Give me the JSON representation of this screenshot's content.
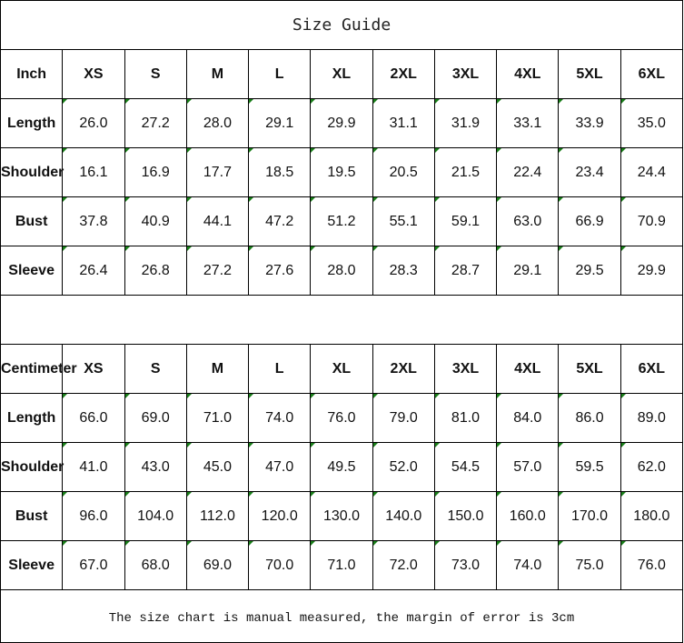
{
  "title": "Size Guide",
  "sizes": [
    "XS",
    "S",
    "M",
    "L",
    "XL",
    "2XL",
    "3XL",
    "4XL",
    "5XL",
    "6XL"
  ],
  "accent_color": "#1a7f1a",
  "tables": [
    {
      "unit": "Inch",
      "rows": [
        {
          "label": "Length",
          "values": [
            "26.0",
            "27.2",
            "28.0",
            "29.1",
            "29.9",
            "31.1",
            "31.9",
            "33.1",
            "33.9",
            "35.0"
          ]
        },
        {
          "label": "Shoulder",
          "values": [
            "16.1",
            "16.9",
            "17.7",
            "18.5",
            "19.5",
            "20.5",
            "21.5",
            "22.4",
            "23.4",
            "24.4"
          ]
        },
        {
          "label": "Bust",
          "values": [
            "37.8",
            "40.9",
            "44.1",
            "47.2",
            "51.2",
            "55.1",
            "59.1",
            "63.0",
            "66.9",
            "70.9"
          ]
        },
        {
          "label": "Sleeve",
          "values": [
            "26.4",
            "26.8",
            "27.2",
            "27.6",
            "28.0",
            "28.3",
            "28.7",
            "29.1",
            "29.5",
            "29.9"
          ]
        }
      ]
    },
    {
      "unit": "Centimeter",
      "rows": [
        {
          "label": "Length",
          "values": [
            "66.0",
            "69.0",
            "71.0",
            "74.0",
            "76.0",
            "79.0",
            "81.0",
            "84.0",
            "86.0",
            "89.0"
          ]
        },
        {
          "label": "Shoulder",
          "values": [
            "41.0",
            "43.0",
            "45.0",
            "47.0",
            "49.5",
            "52.0",
            "54.5",
            "57.0",
            "59.5",
            "62.0"
          ]
        },
        {
          "label": "Bust",
          "values": [
            "96.0",
            "104.0",
            "112.0",
            "120.0",
            "130.0",
            "140.0",
            "150.0",
            "160.0",
            "170.0",
            "180.0"
          ]
        },
        {
          "label": "Sleeve",
          "values": [
            "67.0",
            "68.0",
            "69.0",
            "70.0",
            "71.0",
            "72.0",
            "73.0",
            "74.0",
            "75.0",
            "76.0"
          ]
        }
      ]
    }
  ],
  "footer_note": "The size chart is manual measured, the margin of error is 3cm"
}
